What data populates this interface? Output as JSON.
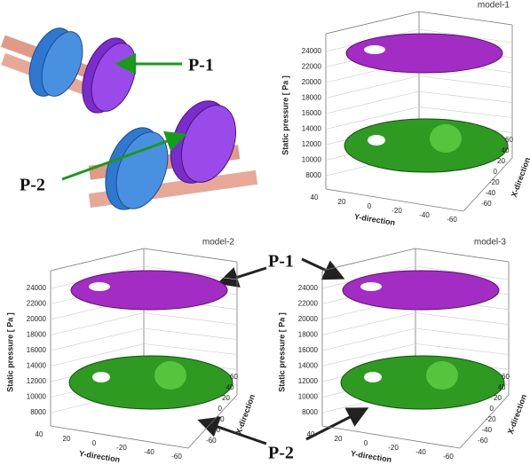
{
  "schematic": {
    "labels": [
      "P-1",
      "P-2"
    ]
  },
  "panels": [
    {
      "title": "model-1",
      "z_label": "Static pressure [ Pa ]",
      "zticks": [
        "24000",
        "22000",
        "20000",
        "18000",
        "16000",
        "14000",
        "12000",
        "10000",
        "8000"
      ],
      "y_label": "Y-direction",
      "yticks": [
        "40",
        "20",
        "0",
        "-20",
        "-40",
        "-60"
      ],
      "x_label": "X-direction",
      "xticks": [
        "60",
        "40",
        "20",
        "0",
        "-20",
        "-40",
        "-60"
      ]
    },
    {
      "title": "model-2",
      "z_label": "Static pressure [ Pa ]",
      "zticks": [
        "24000",
        "22000",
        "20000",
        "18000",
        "16000",
        "14000",
        "12000",
        "10000",
        "8000"
      ],
      "y_label": "Y-direction",
      "yticks": [
        "40",
        "20",
        "0",
        "-20",
        "-40",
        "-60"
      ],
      "x_label": "X-direction",
      "xticks": [
        "60",
        "40",
        "20",
        "0",
        "-20",
        "-40",
        "-60"
      ]
    },
    {
      "title": "model-3",
      "z_label": "Static pressure [ Pa ]",
      "zticks": [
        "24000",
        "22000",
        "20000",
        "18000",
        "16000",
        "14000",
        "12000",
        "10000",
        "8000"
      ],
      "y_label": "Y-direction",
      "yticks": [
        "40",
        "20",
        "0",
        "-20",
        "-40",
        "-60"
      ],
      "x_label": "X-direction",
      "xticks": [
        "60",
        "40",
        "20",
        "0",
        "-20",
        "-40",
        "-60"
      ]
    }
  ],
  "callouts": [
    "P-1",
    "P-2"
  ]
}
